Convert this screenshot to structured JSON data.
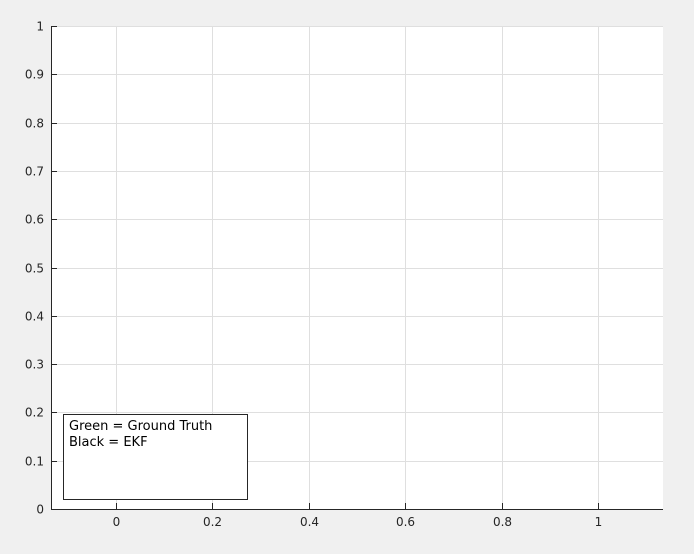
{
  "chart_data": {
    "type": "line",
    "title": "",
    "xlabel": "",
    "ylabel": "",
    "xlim": [
      -0.135,
      1.135
    ],
    "ylim": [
      0,
      1
    ],
    "xticks": [
      0,
      0.2,
      0.4,
      0.6,
      0.8,
      1
    ],
    "xtick_labels": [
      "0",
      "0.2",
      "0.4",
      "0.6",
      "0.8",
      "1"
    ],
    "yticks": [
      0,
      0.1,
      0.2,
      0.3,
      0.4,
      0.5,
      0.6,
      0.7,
      0.8,
      0.9,
      1
    ],
    "ytick_labels": [
      "0",
      "0.1",
      "0.2",
      "0.3",
      "0.4",
      "0.5",
      "0.6",
      "0.7",
      "0.8",
      "0.9",
      "1"
    ],
    "grid": true,
    "series": [],
    "annotation": {
      "lines": [
        "Green = Ground Truth",
        "Black = EKF"
      ],
      "placement": "bottom-left"
    }
  },
  "colors": {
    "figure_background": "#f0f0f0",
    "axes_background": "#ffffff",
    "grid": "#dfdfdf",
    "axis": "#262626"
  }
}
